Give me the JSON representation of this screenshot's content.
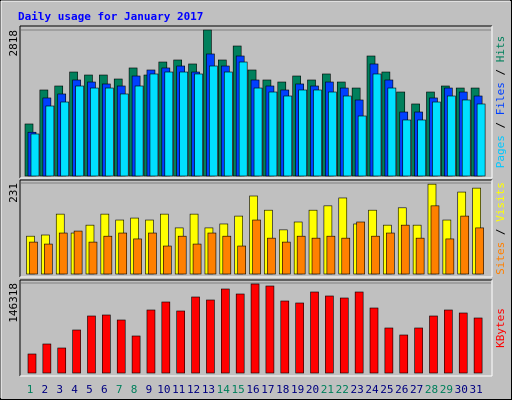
{
  "legend_separator": " / ",
  "chart_data": [
    {
      "type": "bar",
      "title": "Daily usage for January 2017",
      "ylim": [
        0,
        2818
      ],
      "yticks": [
        2818
      ],
      "series": [
        {
          "name": "Hits",
          "color": "#00805c",
          "label_color": "#00805c",
          "values": [
            1004,
            1660,
            1737,
            2007,
            1949,
            1949,
            1872,
            2085,
            1949,
            2200,
            2239,
            2162,
            2818,
            2239,
            2509,
            2046,
            1853,
            1814,
            1930,
            1853,
            1969,
            1814,
            1698,
            2316,
            2007,
            1621,
            1390,
            1621,
            1737,
            1698,
            1698
          ]
        },
        {
          "name": "Files",
          "color": "#0040ff",
          "label_color": "#0040ff",
          "values": [
            845,
            1506,
            1583,
            1853,
            1814,
            1776,
            1737,
            1930,
            2046,
            2085,
            2123,
            2007,
            2355,
            2123,
            2316,
            1853,
            1737,
            1660,
            1776,
            1737,
            1814,
            1698,
            1467,
            2162,
            1853,
            1235,
            1235,
            1506,
            1698,
            1621,
            1544
          ]
        },
        {
          "name": "Pages",
          "color": "#00e0ff",
          "label_color": "#00c8ff",
          "values": [
            811,
            1351,
            1428,
            1737,
            1698,
            1698,
            1583,
            1737,
            1969,
            2007,
            2007,
            1969,
            2123,
            2007,
            2200,
            1698,
            1621,
            1544,
            1660,
            1660,
            1621,
            1544,
            1158,
            1969,
            1698,
            1081,
            1081,
            1428,
            1544,
            1467,
            1390
          ]
        }
      ]
    },
    {
      "type": "bar",
      "ylim": [
        0,
        231
      ],
      "yticks": [
        231
      ],
      "series": [
        {
          "name": "Visits",
          "color": "#ffff00",
          "label_color": "#ffff00",
          "values": [
            96,
            99,
            152,
            104,
            124,
            152,
            137,
            142,
            137,
            152,
            117,
            152,
            117,
            127,
            147,
            198,
            162,
            112,
            132,
            162,
            173,
            193,
            127,
            162,
            124,
            168,
            124,
            228,
            137,
            208,
            218
          ]
        },
        {
          "name": "Sites",
          "color": "#ff8000",
          "label_color": "#ff8000",
          "values": [
            81,
            76,
            104,
            109,
            81,
            96,
            104,
            89,
            104,
            71,
            96,
            76,
            104,
            96,
            71,
            137,
            91,
            81,
            96,
            91,
            96,
            91,
            132,
            96,
            104,
            124,
            91,
            173,
            89,
            147,
            117
          ]
        }
      ]
    },
    {
      "type": "bar",
      "ylim": [
        0,
        146318
      ],
      "yticks": [
        146318
      ],
      "categories": [
        "1",
        "2",
        "3",
        "4",
        "5",
        "6",
        "7",
        "8",
        "9",
        "10",
        "11",
        "12",
        "13",
        "14",
        "15",
        "16",
        "17",
        "18",
        "19",
        "20",
        "21",
        "22",
        "23",
        "24",
        "25",
        "26",
        "27",
        "28",
        "29",
        "30",
        "31"
      ],
      "category_colors": [
        "#00805c",
        "#000080",
        "#000080",
        "#000080",
        "#000080",
        "#000080",
        "#00805c",
        "#00805c",
        "#000080",
        "#000080",
        "#000080",
        "#000080",
        "#000080",
        "#00805c",
        "#00805c",
        "#000080",
        "#000080",
        "#000080",
        "#000080",
        "#000080",
        "#00805c",
        "#00805c",
        "#000080",
        "#000080",
        "#000080",
        "#000080",
        "#000080",
        "#00805c",
        "#00805c",
        "#000080",
        "#000080"
      ],
      "series": [
        {
          "name": "KBytes",
          "color": "#ff0000",
          "label_color": "#ff0000",
          "values": [
            30889,
            47147,
            40644,
            69908,
            92668,
            94294,
            86165,
            60153,
            102423,
            115429,
            100797,
            123557,
            118680,
            136563,
            128435,
            144692,
            141441,
            117054,
            113803,
            131686,
            125183,
            121932,
            131686,
            105674,
            73159,
            61779,
            73159,
            92668,
            102423,
            97545,
            89417
          ]
        }
      ]
    }
  ]
}
